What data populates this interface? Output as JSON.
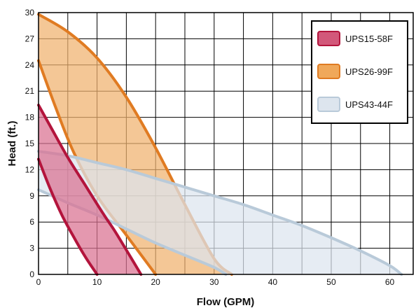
{
  "chart_data": {
    "type": "area",
    "title": "",
    "xlabel": "Flow (GPM)",
    "ylabel": "Head (ft.)",
    "xlim": [
      0,
      64
    ],
    "ylim": [
      0,
      30
    ],
    "x_ticks": [
      0,
      10,
      20,
      30,
      40,
      50,
      60
    ],
    "y_ticks": [
      0,
      3,
      6,
      9,
      12,
      15,
      18,
      21,
      24,
      27,
      30
    ],
    "x_gridlines": [
      0,
      5,
      10,
      15,
      20,
      25,
      30,
      35,
      40,
      45,
      50,
      55,
      60,
      64
    ],
    "grid": true,
    "legend_position": "top-right",
    "series": [
      {
        "name": "UPS26-99F",
        "line_color": "#e07b22",
        "fill_color": "#f0b26e",
        "upper": [
          [
            0,
            29.8
          ],
          [
            5,
            27.8
          ],
          [
            10,
            24.8
          ],
          [
            15,
            20.3
          ],
          [
            20,
            14.5
          ],
          [
            25,
            8
          ],
          [
            30,
            1.8
          ],
          [
            33,
            0
          ]
        ],
        "lower": [
          [
            0,
            24.5
          ],
          [
            3,
            19
          ],
          [
            6,
            14
          ],
          [
            10,
            9
          ],
          [
            15,
            4.5
          ],
          [
            20,
            0
          ]
        ]
      },
      {
        "name": "UPS43-44F",
        "line_color": "#b9cad9",
        "fill_color": "#dde5ee",
        "upper": [
          [
            0,
            14.1
          ],
          [
            5,
            13.6
          ],
          [
            10,
            12.8
          ],
          [
            15,
            12
          ],
          [
            20,
            11
          ],
          [
            25,
            10
          ],
          [
            30,
            9
          ],
          [
            35,
            8
          ],
          [
            40,
            6.8
          ],
          [
            45,
            5.6
          ],
          [
            50,
            4.2
          ],
          [
            55,
            2.7
          ],
          [
            60,
            1
          ],
          [
            62,
            0
          ]
        ],
        "lower": [
          [
            0,
            9.7
          ],
          [
            5,
            8.2
          ],
          [
            10,
            6.8
          ],
          [
            15,
            5.2
          ],
          [
            20,
            3.6
          ],
          [
            25,
            2.2
          ],
          [
            30,
            0.8
          ],
          [
            32,
            0
          ]
        ]
      },
      {
        "name": "UPS15-58F",
        "line_color": "#b3143c",
        "fill_color": "#d97090",
        "upper": [
          [
            0,
            19.4
          ],
          [
            2,
            17
          ],
          [
            5,
            13.4
          ],
          [
            8,
            10.2
          ],
          [
            11,
            7
          ],
          [
            13,
            5
          ],
          [
            15,
            2.8
          ],
          [
            17.5,
            0
          ]
        ],
        "lower": [
          [
            0,
            13.2
          ],
          [
            2,
            9.8
          ],
          [
            4,
            6.8
          ],
          [
            6,
            4.3
          ],
          [
            8,
            2
          ],
          [
            10,
            0
          ]
        ]
      }
    ],
    "legend": [
      {
        "label": "UPS15-58F",
        "swatch_color": "#d2587a",
        "border_color": "#b3143c"
      },
      {
        "label": "UPS26-99F",
        "swatch_color": "#f0a85a",
        "border_color": "#e07b22"
      },
      {
        "label": "UPS43-44F",
        "swatch_color": "#dde5ee",
        "border_color": "#b9cad9"
      }
    ]
  }
}
